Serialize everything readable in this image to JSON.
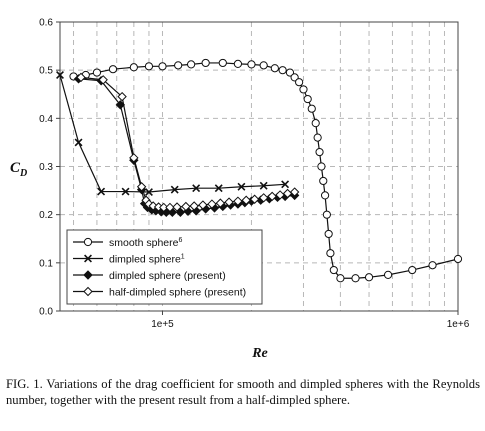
{
  "chart_data": {
    "type": "line",
    "xscale": "log",
    "xlim": [
      45000,
      1000000
    ],
    "ylim": [
      0,
      0.6
    ],
    "xlabel": "Re",
    "ylabel": "C",
    "ylabel_sub": "D",
    "yticks": [
      0.0,
      0.1,
      0.2,
      0.3,
      0.4,
      0.5,
      0.6
    ],
    "ytick_labels": [
      "0.0",
      "0.1",
      "0.2",
      "0.3",
      "0.4",
      "0.5",
      "0.6"
    ],
    "xticks": [
      100000,
      1000000
    ],
    "xtick_labels": [
      "1e+5",
      "1e+6"
    ],
    "grid": true,
    "legend_position": "bottom-left",
    "series": [
      {
        "name": "smooth sphere",
        "name_sup": "6",
        "marker": "open-circle",
        "x": [
          50000,
          55000,
          60000,
          68000,
          80000,
          90000,
          100000,
          113000,
          125000,
          140000,
          160000,
          180000,
          200000,
          220000,
          240000,
          255000,
          270000,
          280000,
          290000,
          300000,
          310000,
          320000,
          330000,
          335000,
          340000,
          345000,
          350000,
          355000,
          360000,
          365000,
          370000,
          380000,
          400000,
          450000,
          500000,
          580000,
          700000,
          820000,
          1000000
        ],
        "y": [
          0.487,
          0.49,
          0.495,
          0.502,
          0.506,
          0.508,
          0.508,
          0.51,
          0.512,
          0.515,
          0.515,
          0.513,
          0.512,
          0.51,
          0.504,
          0.5,
          0.495,
          0.485,
          0.475,
          0.46,
          0.44,
          0.42,
          0.39,
          0.36,
          0.33,
          0.3,
          0.27,
          0.24,
          0.2,
          0.16,
          0.12,
          0.085,
          0.068,
          0.068,
          0.07,
          0.075,
          0.085,
          0.095,
          0.108
        ]
      },
      {
        "name": "dimpled sphere",
        "name_sup": "1",
        "marker": "x",
        "x": [
          45000,
          52000,
          62000,
          75000,
          90000,
          110000,
          130000,
          155000,
          185000,
          220000,
          260000
        ],
        "y": [
          0.49,
          0.35,
          0.248,
          0.248,
          0.247,
          0.252,
          0.255,
          0.255,
          0.258,
          0.26,
          0.263
        ]
      },
      {
        "name": "dimpled sphere (present)",
        "marker": "filled-diamond",
        "x": [
          52000,
          62000,
          72000,
          80000,
          85000,
          87000,
          89000,
          92000,
          95000,
          99000,
          103000,
          108000,
          115000,
          122000,
          130000,
          140000,
          150000,
          160000,
          170000,
          180000,
          190000,
          200000,
          215000,
          230000,
          245000,
          260000,
          280000
        ],
        "y": [
          0.482,
          0.478,
          0.428,
          0.313,
          0.252,
          0.223,
          0.215,
          0.21,
          0.208,
          0.206,
          0.205,
          0.205,
          0.205,
          0.207,
          0.208,
          0.212,
          0.214,
          0.217,
          0.22,
          0.222,
          0.225,
          0.228,
          0.23,
          0.233,
          0.236,
          0.238,
          0.24
        ]
      },
      {
        "name": "half-dimpled sphere (present)",
        "marker": "open-diamond",
        "x": [
          53000,
          63000,
          73000,
          80000,
          85000,
          88000,
          90000,
          93000,
          97000,
          101000,
          106000,
          112000,
          120000,
          128000,
          137000,
          147000,
          157000,
          168000,
          180000,
          192000,
          205000,
          220000,
          235000,
          250000,
          265000,
          280000
        ],
        "y": [
          0.485,
          0.48,
          0.445,
          0.318,
          0.258,
          0.23,
          0.222,
          0.218,
          0.216,
          0.215,
          0.215,
          0.216,
          0.217,
          0.218,
          0.22,
          0.222,
          0.224,
          0.226,
          0.228,
          0.23,
          0.232,
          0.235,
          0.238,
          0.241,
          0.244,
          0.247
        ]
      }
    ]
  },
  "caption": "FIG. 1. Variations of the drag coefficient for smooth and dimpled spheres with the Reynolds number, together with the present result from a half-dimpled sphere.",
  "colors": {
    "line": "#111111",
    "grid": "#b8b8b8",
    "frame": "#444444"
  }
}
